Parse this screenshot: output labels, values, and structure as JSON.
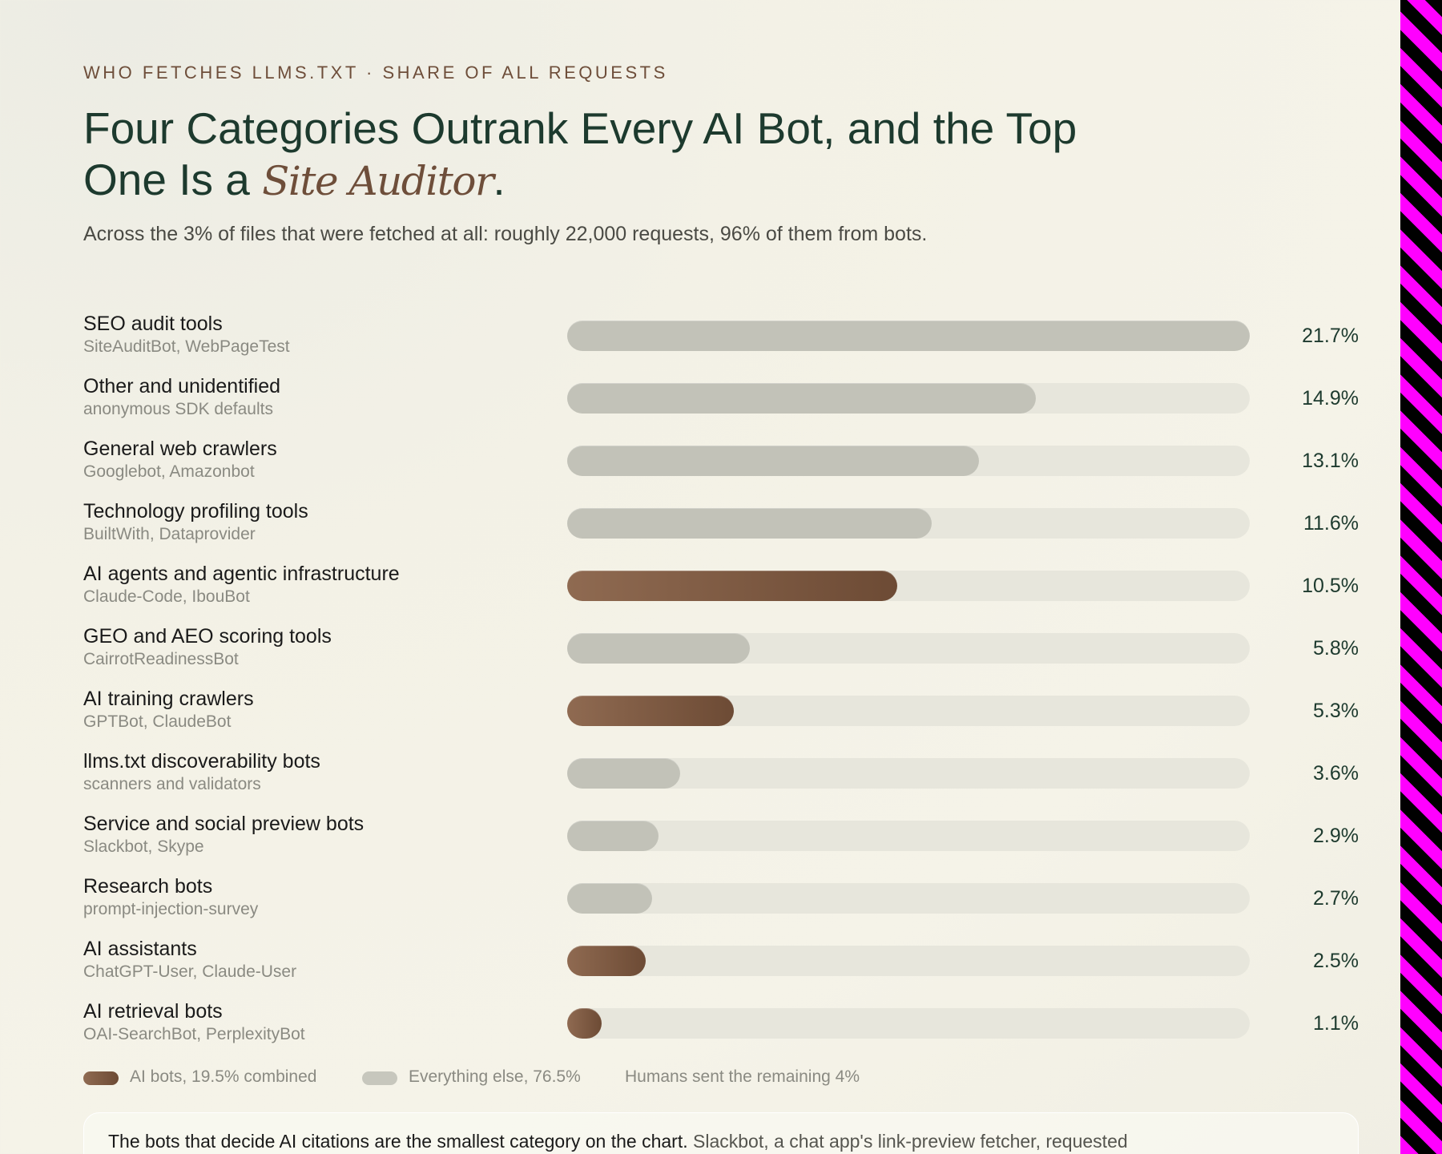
{
  "header": {
    "eyebrow": "WHO FETCHES LLMS.TXT · SHARE OF ALL REQUESTS",
    "headline_part1": "Four Categories Outrank Every AI Bot, and the Top One Is a",
    "headline_emph": "Site Auditor",
    "headline_end": ".",
    "subtitle": "Across the 3% of files that were fetched at all: roughly 22,000 requests, 96% of them from bots."
  },
  "chart_data": {
    "type": "bar",
    "orientation": "horizontal",
    "title": "Four Categories Outrank Every AI Bot, and the Top One Is a Site Auditor.",
    "xlim": [
      0,
      21.7
    ],
    "unit": "%",
    "categories": [
      "SEO audit tools",
      "Other and unidentified",
      "General web crawlers",
      "Technology profiling tools",
      "AI agents and agentic infrastructure",
      "GEO and AEO scoring tools",
      "AI training crawlers",
      "llms.txt discoverability bots",
      "Service and social preview bots",
      "Research bots",
      "AI assistants",
      "AI retrieval bots"
    ],
    "subtitles": [
      "SiteAuditBot, WebPageTest",
      "anonymous SDK defaults",
      "Googlebot, Amazonbot",
      "BuiltWith, Dataprovider",
      "Claude-Code, IbouBot",
      "CairrotReadinessBot",
      "GPTBot, ClaudeBot",
      "scanners and validators",
      "Slackbot, Skype",
      "prompt-injection-survey",
      "ChatGPT-User, Claude-User",
      "OAI-SearchBot, PerplexityBot"
    ],
    "values": [
      21.7,
      14.9,
      13.1,
      11.6,
      10.5,
      5.8,
      5.3,
      3.6,
      2.9,
      2.7,
      2.5,
      1.1
    ],
    "labels": [
      "21.7%",
      "14.9%",
      "13.1%",
      "11.6%",
      "10.5%",
      "5.8%",
      "5.3%",
      "3.6%",
      "2.9%",
      "2.7%",
      "2.5%",
      "1.1%"
    ],
    "is_ai": [
      false,
      false,
      false,
      false,
      true,
      false,
      true,
      false,
      false,
      false,
      true,
      true
    ],
    "colors": {
      "ai": "#7a553d",
      "other": "#c2c2b8",
      "track": "#e7e6dc"
    }
  },
  "legend": {
    "ai_label": "AI bots, 19.5% combined",
    "other_label": "Everything else, 76.5%",
    "humans_label": "Humans sent the remaining 4%"
  },
  "note": {
    "bold": "The bots that decide AI citations are the smallest category on the chart.",
    "text": "Slackbot, a chat app's link-preview fetcher, requested"
  }
}
